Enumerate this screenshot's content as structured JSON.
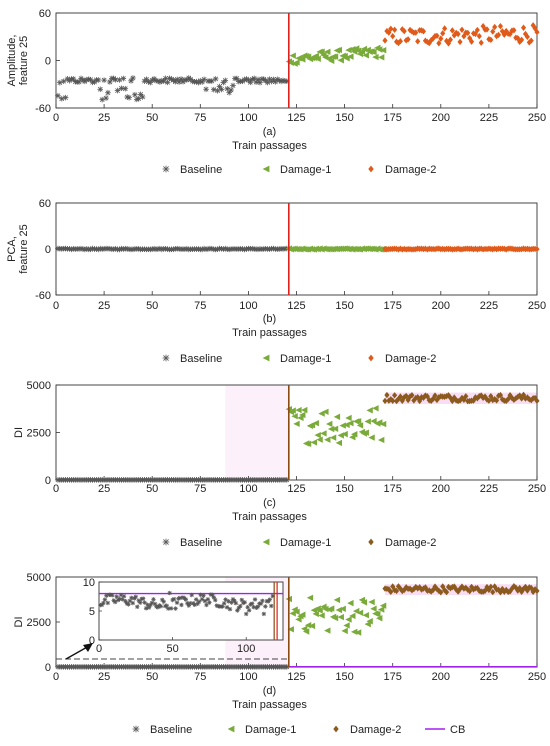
{
  "colors": {
    "baseline": "#555555",
    "damage1": "#7aab3a",
    "damage2_a": "#e05a1a",
    "damage2_c": "#8b5a1e",
    "divider": "#e0201a",
    "divider_c": "#8b4a10",
    "cb": "#a020f0",
    "band": "#f6d4f2"
  },
  "chart_data": [
    {
      "type": "scatter",
      "panel_label": "(a)",
      "xlabel": "Train passages",
      "ylabel": "Amplitude,\nfeature 25",
      "xlim": [
        0,
        250
      ],
      "ylim": [
        -60,
        60
      ],
      "xticks": [
        0,
        25,
        50,
        75,
        100,
        125,
        150,
        175,
        200,
        225,
        250
      ],
      "yticks": [
        -60,
        0,
        60
      ],
      "divider_x": 121,
      "legend": [
        "Baseline",
        "Damage-1",
        "Damage-2"
      ],
      "series": [
        {
          "name": "Baseline",
          "marker": "asterisk",
          "x_range": [
            1,
            120
          ],
          "summary": "mostly -25 to -20; dips to about -50 near x=1-5 and x=22-45",
          "points": [
            [
              1,
              -50
            ],
            [
              3,
              -45
            ],
            [
              5,
              -40
            ],
            [
              8,
              -28
            ],
            [
              12,
              -24
            ],
            [
              18,
              -22
            ],
            [
              22,
              -35
            ],
            [
              25,
              -30
            ],
            [
              30,
              -40
            ],
            [
              33,
              -28
            ],
            [
              36,
              -45
            ],
            [
              40,
              -22
            ],
            [
              42,
              -50
            ],
            [
              45,
              -40
            ],
            [
              50,
              -25
            ],
            [
              60,
              -22
            ],
            [
              70,
              -24
            ],
            [
              80,
              -35
            ],
            [
              85,
              -40
            ],
            [
              90,
              -25
            ],
            [
              95,
              -32
            ],
            [
              100,
              -22
            ],
            [
              110,
              -22
            ],
            [
              118,
              -21
            ]
          ]
        },
        {
          "name": "Damage-1",
          "marker": "triangle-left",
          "x_range": [
            121,
            170
          ],
          "summary": "about 0 to 20, rising from ~5 to ~18",
          "points": [
            [
              121,
              12
            ],
            [
              125,
              5
            ],
            [
              130,
              14
            ],
            [
              135,
              8
            ],
            [
              140,
              3
            ],
            [
              145,
              10
            ],
            [
              150,
              2
            ],
            [
              155,
              6
            ],
            [
              160,
              8
            ],
            [
              165,
              12
            ],
            [
              170,
              20
            ]
          ]
        },
        {
          "name": "Damage-2",
          "marker": "diamond",
          "x_range": [
            171,
            250
          ],
          "summary": "about 20 to 45, mean ~30",
          "points": [
            [
              171,
              25
            ],
            [
              180,
              28
            ],
            [
              190,
              30
            ],
            [
              200,
              26
            ],
            [
              210,
              32
            ],
            [
              220,
              38
            ],
            [
              230,
              35
            ],
            [
              240,
              42
            ],
            [
              250,
              30
            ]
          ]
        }
      ]
    },
    {
      "type": "scatter",
      "panel_label": "(b)",
      "xlabel": "Train passages",
      "ylabel": "PCA,\nfeature 25",
      "xlim": [
        0,
        250
      ],
      "ylim": [
        -60,
        60
      ],
      "xticks": [
        0,
        25,
        50,
        75,
        100,
        125,
        150,
        175,
        200,
        225,
        250
      ],
      "yticks": [
        -60,
        0,
        60
      ],
      "divider_x": 121,
      "legend": [
        "Baseline",
        "Damage-1",
        "Damage-2"
      ],
      "series": [
        {
          "name": "Baseline",
          "marker": "asterisk",
          "x_range": [
            1,
            120
          ],
          "summary": "all approximately 0"
        },
        {
          "name": "Damage-1",
          "marker": "triangle-left",
          "x_range": [
            121,
            170
          ],
          "summary": "all approximately 0"
        },
        {
          "name": "Damage-2",
          "marker": "diamond",
          "x_range": [
            171,
            250
          ],
          "summary": "all approximately 0"
        }
      ]
    },
    {
      "type": "scatter",
      "panel_label": "(c)",
      "xlabel": "Train passages",
      "ylabel": "DI",
      "xlim": [
        0,
        250
      ],
      "ylim": [
        0,
        5000
      ],
      "xticks": [
        0,
        25,
        50,
        75,
        100,
        125,
        150,
        175,
        200,
        225,
        250
      ],
      "yticks": [
        0,
        2500,
        5000
      ],
      "divider_x": 121,
      "legend": [
        "Baseline",
        "Damage-1",
        "Damage-2"
      ],
      "series": [
        {
          "name": "Baseline",
          "marker": "asterisk",
          "x_range": [
            1,
            120
          ],
          "summary": "approximately 5 (near 0)"
        },
        {
          "name": "Damage-1",
          "marker": "triangle-left",
          "x_range": [
            121,
            170
          ],
          "summary": "about 1900 to 3900",
          "points": [
            [
              121,
              3400
            ],
            [
              125,
              2600
            ],
            [
              130,
              3700
            ],
            [
              135,
              2200
            ],
            [
              140,
              3500
            ],
            [
              145,
              1900
            ],
            [
              150,
              3000
            ],
            [
              155,
              2400
            ],
            [
              160,
              3600
            ],
            [
              165,
              2800
            ],
            [
              170,
              3300
            ]
          ]
        },
        {
          "name": "Damage-2",
          "marker": "diamond",
          "x_range": [
            171,
            250
          ],
          "summary": "about 4100 to 4500, mean ~4300"
        }
      ]
    },
    {
      "type": "scatter",
      "panel_label": "(d)",
      "xlabel": "Train passages",
      "ylabel": "DI",
      "xlim": [
        0,
        250
      ],
      "ylim": [
        0,
        5000
      ],
      "xticks": [
        0,
        25,
        50,
        75,
        100,
        125,
        150,
        175,
        200,
        225,
        250
      ],
      "yticks": [
        0,
        2500,
        5000
      ],
      "divider_x": 121,
      "cb_value": 8,
      "legend": [
        "Baseline",
        "Damage-1",
        "Damage-2",
        "CB"
      ],
      "series": [
        {
          "name": "Baseline",
          "marker": "asterisk",
          "x_range": [
            1,
            120
          ],
          "summary": "approximately 5 (near 0)"
        },
        {
          "name": "Damage-1",
          "marker": "triangle-left",
          "x_range": [
            121,
            170
          ],
          "summary": "about 1900 to 3900"
        },
        {
          "name": "Damage-2",
          "marker": "diamond",
          "x_range": [
            171,
            250
          ],
          "summary": "about 4100 to 4500"
        },
        {
          "name": "CB",
          "marker": "line",
          "y": 8
        }
      ],
      "inset": {
        "xlim": [
          0,
          125
        ],
        "ylim": [
          0,
          10
        ],
        "xticks": [
          0,
          50,
          100
        ],
        "yticks": [
          0,
          5,
          10
        ],
        "cb_value": 8,
        "summary": "Baseline DI mostly between 5.5 and 7.5, spikes to ~8 near x=48, dips to ~4.5 near x=100 and x=112"
      }
    }
  ]
}
